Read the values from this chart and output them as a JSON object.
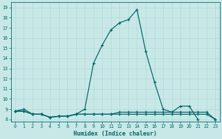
{
  "xlabel": "Humidex (Indice chaleur)",
  "bg_color": "#c8e8e8",
  "grid_color": "#b0d8d8",
  "line_color": "#006666",
  "xlim": [
    -0.5,
    23.5
  ],
  "ylim": [
    7.8,
    19.5
  ],
  "xticks": [
    0,
    1,
    2,
    3,
    4,
    5,
    6,
    7,
    8,
    9,
    10,
    11,
    12,
    13,
    14,
    15,
    16,
    17,
    18,
    19,
    20,
    21,
    22,
    23
  ],
  "yticks": [
    8,
    9,
    10,
    11,
    12,
    13,
    14,
    15,
    16,
    17,
    18,
    19
  ],
  "series": [
    [
      8.8,
      9.0,
      8.5,
      8.5,
      8.2,
      8.3,
      8.3,
      8.5,
      9.0,
      13.5,
      15.3,
      16.8,
      17.5,
      17.8,
      18.8,
      14.7,
      11.7,
      9.0,
      8.7,
      9.3,
      9.3,
      8.0,
      null,
      null
    ],
    [
      8.8,
      8.8,
      8.5,
      8.5,
      8.2,
      8.3,
      8.3,
      8.5,
      8.5,
      8.5,
      8.5,
      8.5,
      8.5,
      8.5,
      8.5,
      8.5,
      8.5,
      8.5,
      8.5,
      8.5,
      8.5,
      8.5,
      8.5,
      8.0
    ],
    [
      8.8,
      8.8,
      8.5,
      8.5,
      8.2,
      8.3,
      8.3,
      8.5,
      8.5,
      8.5,
      8.5,
      8.5,
      8.7,
      8.7,
      8.7,
      8.7,
      8.7,
      8.7,
      8.7,
      8.7,
      8.7,
      8.7,
      8.7,
      8.0
    ]
  ],
  "main_series_x": [
    0,
    1,
    2,
    3,
    4,
    5,
    6,
    7,
    8,
    9,
    10,
    11,
    12,
    13,
    14,
    15,
    16,
    17,
    18,
    19,
    20,
    21
  ],
  "main_series_y": [
    8.8,
    9.0,
    8.5,
    8.5,
    8.2,
    8.3,
    8.3,
    8.5,
    9.0,
    13.5,
    15.3,
    16.8,
    17.5,
    17.8,
    18.8,
    14.7,
    11.7,
    9.0,
    8.7,
    9.3,
    9.3,
    8.0
  ]
}
